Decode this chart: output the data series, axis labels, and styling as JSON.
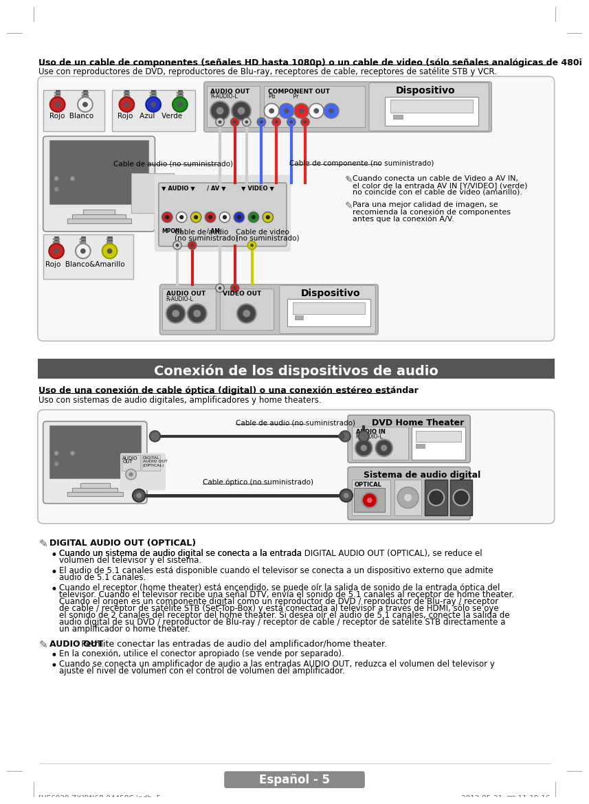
{
  "section1_title": "Uso de un cable de componentes (señales HD hasta 1080p) o un cable de video (sólo señales analógicas de 480i)",
  "section1_subtitle": "Use con reproductores de DVD, reproductores de Blu-ray, receptores de cable, receptores de satélite STB y VCR.",
  "section2_banner": "Conexión de los dispositivos de audio",
  "section2_title": "Uso de una conexión de cable óptica (digital) o una conexión estéreo estándar",
  "section2_subtitle": "Uso con sistemas de audio digitales, amplificadores y home theaters.",
  "note1_header": "DIGITAL AUDIO OUT (OPTICAL)",
  "note1_bullet1_l1": "Cuando un sistema de audio digital se conecta a la entrada ",
  "note1_bullet1_bold": "DIGITAL AUDIO OUT (OPTICAL)",
  "note1_bullet1_l2": ", se reduce el",
  "note1_bullet1_rest": "volumen del televisor y el sistema.",
  "note1_bullet2_l1": "El audio de 5.1 canales está disponible cuando el televisor se conecta a un dispositivo externo que admite",
  "note1_bullet2_l2": "audio de 5.1 canales.",
  "note1_bullet3": [
    "Cuando el receptor (home theater) está encendido, se puede oír la salida de sonido de la entrada óptica del",
    "televisor. Cuando el televisor recibe una señal DTV, envía el sonido de 5.1 canales al receptor de home theater.",
    "Cuando el origen es un componente digital como un reproductor de DVD / reproductor de Blu-ray / receptor",
    "de cable / receptor de satélite STB (Set-Top-Box) y está conectada al televisor a través de HDMI, sólo se oye",
    "el sonido de 2 canales del receptor del home theater. Si desea oír el audio de 5.1 canales, conecte la salida de",
    "audio digital de su DVD / reproductor de Blu-ray / receptor de cable / receptor de satélite STB directamente a",
    "un amplificador o home theater."
  ],
  "note2_header": "AUDIO OUT",
  "note2_header_rest": ": Permite conectar las entradas de audio del amplificador/home theater.",
  "note2_bullet1": "En la conexión, utilice el conector apropiado (se vende por separado).",
  "note2_bullet2_l1": "Cuando se conecta un amplificador de audio a las entradas ",
  "note2_bullet2_bold": "AUDIO OUT",
  "note2_bullet2_l2": ", reduzca el volumen del televisor y",
  "note2_bullet2_rest": "ajuste el nivel de volumen con el control de volumen del amplificador.",
  "footer_text": "Español - 5",
  "footer_file": "[UE6030-ZX]BN68-04458C.indb  5",
  "footer_date": "2012-05-21  오전 11:19:16",
  "bg_color": "#ffffff",
  "banner_bg": "#555555",
  "banner_fg": "#ffffff",
  "gray_box_bg": "#f0f0f0",
  "gray_box_ec": "#bbbbbb",
  "device_panel_bg": "#b8b8b8",
  "device_panel_title_bg": "#d0d0d0",
  "inner_panel_bg": "#d8d8d8",
  "dark_panel_bg": "#c8c8c8"
}
